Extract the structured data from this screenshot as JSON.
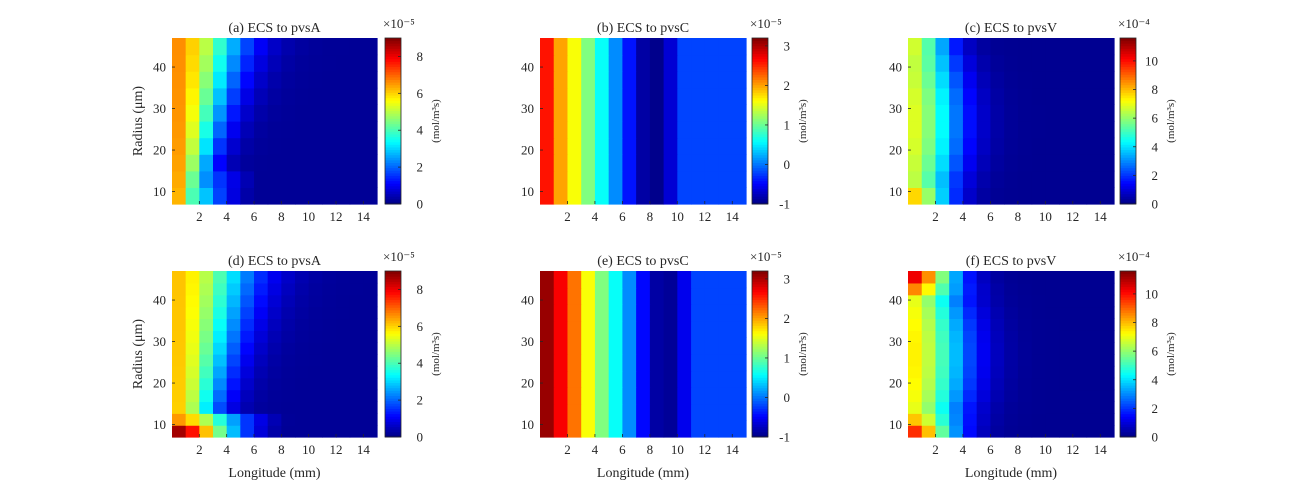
{
  "chart_data": [
    {
      "type": "heatmap",
      "title": "(a) ECS to pvsA",
      "cmap": "jet",
      "xlabel": "",
      "ylabel": "Radius (μm)",
      "xlim": [
        0,
        15
      ],
      "ylim": [
        7,
        47
      ],
      "xticks": [
        2,
        4,
        6,
        8,
        10,
        12,
        14
      ],
      "yticks": [
        10,
        20,
        30,
        40
      ],
      "nx": 15,
      "ny": 10,
      "colorbar": {
        "label": "(mol/m³s)",
        "min": 0,
        "max": 9,
        "ticks": [
          0,
          2,
          4,
          6,
          8
        ],
        "exponent": "×10⁻⁵"
      },
      "field": {
        "kind": "arterial",
        "peak": 4.9,
        "edge": 6.5,
        "amp": 2.8,
        "decay": 6,
        "spread": 2.2,
        "base": 0.2
      }
    },
    {
      "type": "heatmap",
      "title": "(b) ECS to pvsC",
      "cmap": "jet",
      "xlabel": "",
      "ylabel": "",
      "xlim": [
        0,
        15
      ],
      "ylim": [
        7,
        47
      ],
      "xticks": [
        2,
        4,
        6,
        8,
        10,
        12,
        14
      ],
      "yticks": [
        10,
        20,
        30,
        40
      ],
      "nx": 15,
      "ny": 10,
      "colorbar": {
        "label": "(mol/m³s)",
        "min": -1,
        "max": 3.2,
        "ticks": [
          -1,
          0,
          1,
          2,
          3
        ],
        "exponent": "×10⁻⁵"
      },
      "columns": [
        2.6,
        2.0,
        1.6,
        1.1,
        0.6,
        0.1,
        -0.4,
        -0.85,
        -0.95,
        -0.65,
        -0.2,
        -0.2,
        -0.2,
        -0.2,
        -0.2
      ]
    },
    {
      "type": "heatmap",
      "title": "(c) ECS to pvsV",
      "cmap": "jet",
      "xlabel": "",
      "ylabel": "",
      "xlim": [
        0,
        15
      ],
      "ylim": [
        7,
        47
      ],
      "xticks": [
        2,
        4,
        6,
        8,
        10,
        12,
        14
      ],
      "yticks": [
        10,
        20,
        30,
        40
      ],
      "nx": 15,
      "ny": 10,
      "colorbar": {
        "label": "(mol/m³s)",
        "min": 0,
        "max": 11.6,
        "ticks": [
          0,
          2,
          4,
          6,
          8,
          10
        ],
        "exponent": "×10⁻⁴"
      },
      "field": {
        "kind": "venous",
        "peak": 6.8,
        "edge": 7.8,
        "mid": 6.0,
        "decay": 1.25,
        "base": 0.2
      }
    },
    {
      "type": "heatmap",
      "title": "(d) ECS to pvsA",
      "cmap": "jet",
      "xlabel": "Longitude (mm)",
      "ylabel": "Radius (μm)",
      "xlim": [
        0,
        15
      ],
      "ylim": [
        7,
        47
      ],
      "xticks": [
        2,
        4,
        6,
        8,
        10,
        12,
        14
      ],
      "yticks": [
        10,
        20,
        30,
        40
      ],
      "nx": 15,
      "ny": 14,
      "colorbar": {
        "label": "(mol/m³s)",
        "min": 0,
        "max": 9,
        "ticks": [
          0,
          2,
          4,
          6,
          8
        ],
        "exponent": "×10⁻⁵"
      },
      "field": {
        "kind": "arterial",
        "peak": 8.8,
        "edge": 6.0,
        "amp": 2.6,
        "decay": 9,
        "spread": 3.0,
        "base": 0.2
      }
    },
    {
      "type": "heatmap",
      "title": "(e) ECS to pvsC",
      "cmap": "jet",
      "xlabel": "Longitude (mm)",
      "ylabel": "",
      "xlim": [
        0,
        15
      ],
      "ylim": [
        7,
        47
      ],
      "xticks": [
        2,
        4,
        6,
        8,
        10,
        12,
        14
      ],
      "yticks": [
        10,
        20,
        30,
        40
      ],
      "nx": 15,
      "ny": 10,
      "colorbar": {
        "label": "(mol/m³s)",
        "min": -1,
        "max": 3.2,
        "ticks": [
          -1,
          0,
          1,
          2,
          3
        ],
        "exponent": "×10⁻⁵"
      },
      "columns": [
        3.1,
        2.7,
        2.2,
        1.6,
        1.1,
        0.6,
        0.1,
        -0.45,
        -0.85,
        -0.9,
        -0.55,
        -0.2,
        -0.2,
        -0.2,
        -0.2
      ]
    },
    {
      "type": "heatmap",
      "title": "(f) ECS to pvsV",
      "cmap": "jet",
      "xlabel": "Longitude (mm)",
      "ylabel": "",
      "xlim": [
        0,
        15
      ],
      "ylim": [
        7,
        47
      ],
      "xticks": [
        2,
        4,
        6,
        8,
        10,
        12,
        14
      ],
      "yticks": [
        10,
        20,
        30,
        40
      ],
      "nx": 15,
      "ny": 14,
      "colorbar": {
        "label": "(mol/m³s)",
        "min": 0,
        "max": 11.6,
        "ticks": [
          0,
          2,
          4,
          6,
          8,
          10
        ],
        "exponent": "×10⁻⁴"
      },
      "field": {
        "kind": "venous",
        "peak": 10.8,
        "edge": 9.8,
        "mid": 6.5,
        "decay": 1.0,
        "base": 0.2
      }
    }
  ]
}
